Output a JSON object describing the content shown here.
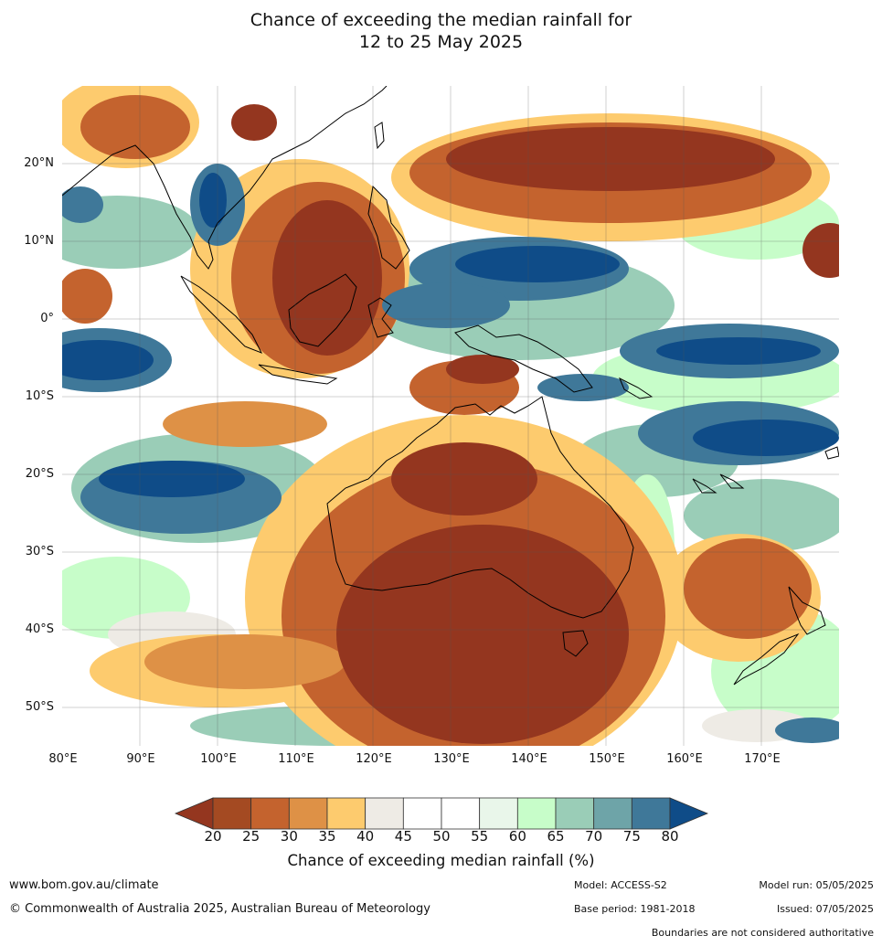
{
  "title": {
    "line1": "Chance of exceeding the median rainfall for",
    "line2": "12 to 25 May 2025"
  },
  "map": {
    "lat_labels": [
      "20°N",
      "10°N",
      "0°",
      "10°S",
      "20°S",
      "30°S",
      "40°S",
      "50°S"
    ],
    "lon_labels": [
      "80°E",
      "90°E",
      "100°E",
      "110°E",
      "120°E",
      "130°E",
      "140°E",
      "150°E",
      "160°E",
      "170°E"
    ],
    "lat_values": [
      20,
      10,
      0,
      -10,
      -20,
      -30,
      -40,
      -50
    ],
    "lon_values": [
      80,
      90,
      100,
      110,
      120,
      130,
      140,
      150,
      160,
      170
    ],
    "extent": {
      "lon_min": 80,
      "lon_max": 180,
      "lat_min": -55,
      "lat_max": 30
    }
  },
  "legend": {
    "ticks": [
      "20",
      "25",
      "30",
      "35",
      "40",
      "45",
      "50",
      "55",
      "60",
      "65",
      "70",
      "75",
      "80"
    ],
    "colors": [
      "#a44a22",
      "#c4632e",
      "#de9146",
      "#fdcb6e",
      "#eeebe5",
      "#ffffff",
      "#ffffff",
      "#e9f6ea",
      "#c7fdc9",
      "#9acdb7",
      "#6ea4a8",
      "#3f7899"
    ],
    "under_color": "#94361f",
    "over_color": "#0f4c88",
    "label": "Chance of exceeding median rainfall (%)"
  },
  "footer": {
    "website": "www.bom.gov.au/climate",
    "copyright": "© Commonwealth of Australia 2025, Australian Bureau of Meteorology",
    "model": "Model: ACCESS-S2",
    "base_period": "Base period: 1981-2018",
    "model_run": "Model run: 05/05/2025",
    "issued": "Issued: 07/05/2025",
    "boundaries": "Boundaries are not considered authoritative"
  }
}
